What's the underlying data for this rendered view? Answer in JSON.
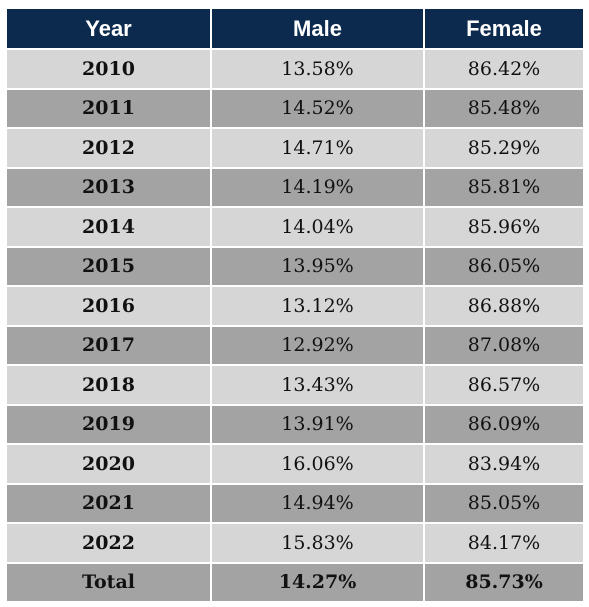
{
  "table": {
    "headers": [
      "Year",
      "Male",
      "Female"
    ],
    "rows": [
      {
        "year": "2010",
        "male": "13.58%",
        "female": "86.42%"
      },
      {
        "year": "2011",
        "male": "14.52%",
        "female": "85.48%"
      },
      {
        "year": "2012",
        "male": "14.71%",
        "female": "85.29%"
      },
      {
        "year": "2013",
        "male": "14.19%",
        "female": "85.81%"
      },
      {
        "year": "2014",
        "male": "14.04%",
        "female": "85.96%"
      },
      {
        "year": "2015",
        "male": "13.95%",
        "female": "86.05%"
      },
      {
        "year": "2016",
        "male": "13.12%",
        "female": "86.88%"
      },
      {
        "year": "2017",
        "male": "12.92%",
        "female": "87.08%"
      },
      {
        "year": "2018",
        "male": "13.43%",
        "female": "86.57%"
      },
      {
        "year": "2019",
        "male": "13.91%",
        "female": "86.09%"
      },
      {
        "year": "2020",
        "male": "16.06%",
        "female": "83.94%"
      },
      {
        "year": "2021",
        "male": "14.94%",
        "female": "85.05%"
      },
      {
        "year": "2022",
        "male": "15.83%",
        "female": "84.17%"
      }
    ],
    "total": {
      "label": "Total",
      "male": "14.27%",
      "female": "85.73%"
    }
  },
  "colors": {
    "header_bg": "#0b2a4e",
    "row_light": "#d6d6d6",
    "row_dark": "#a3a3a3"
  }
}
